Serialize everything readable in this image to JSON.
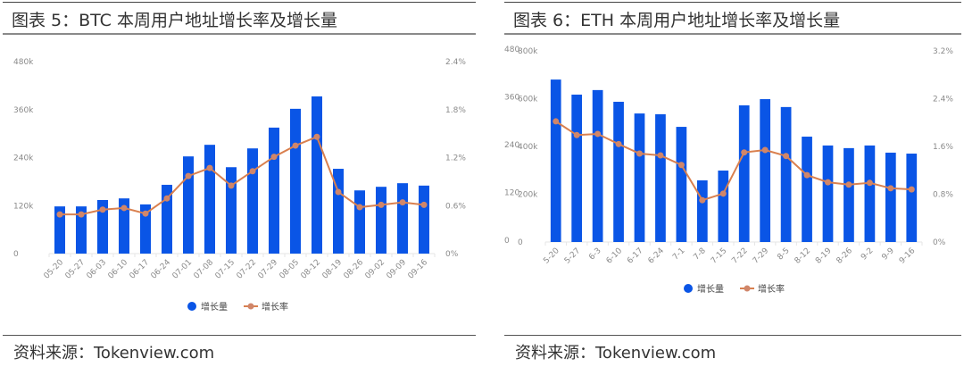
{
  "left_panel": {
    "title": "图表 5：BTC 本周用户地址增长率及增长量",
    "source": "资料来源：Tokenview.com",
    "legend": {
      "bar": "增长量",
      "line": "增长率"
    }
  },
  "right_panel": {
    "title": "图表 6：ETH 本周用户地址增长率及增长量",
    "source": "资料来源：Tokenview.com",
    "legend": {
      "bar": "增长量",
      "line": "增长率"
    }
  },
  "colors": {
    "bar": "#0a55e6",
    "line": "#d9804f",
    "marker": "#d0866a",
    "grid": "#e5e5e5",
    "axis_text": "#8a8a8a"
  },
  "chart_data": [
    {
      "type": "bar+line",
      "title": "图表 5：BTC 本周用户地址增长率及增长量",
      "categories": [
        "05-20",
        "05-27",
        "06-03",
        "06-10",
        "06-17",
        "06-24",
        "07-01",
        "07-08",
        "07-15",
        "07-22",
        "07-29",
        "08-05",
        "08-12",
        "08-19",
        "08-26",
        "09-02",
        "09-09",
        "09-16"
      ],
      "series": [
        {
          "name": "增长量",
          "type": "bar",
          "axis": "left",
          "values": [
            118000,
            118000,
            134000,
            138000,
            123000,
            172000,
            243000,
            272000,
            216000,
            263000,
            315000,
            362000,
            393000,
            212000,
            158000,
            167000,
            176000,
            170000
          ]
        },
        {
          "name": "增长率",
          "type": "line",
          "axis": "right",
          "values": [
            0.49,
            0.49,
            0.55,
            0.57,
            0.5,
            0.69,
            0.97,
            1.07,
            0.85,
            1.03,
            1.21,
            1.35,
            1.46,
            0.77,
            0.58,
            0.61,
            0.64,
            0.61
          ]
        }
      ],
      "left_axis": {
        "ticks": [
          "0",
          "120k",
          "240k",
          "360k",
          "480k"
        ],
        "range": [
          0,
          480000
        ]
      },
      "right_axis": {
        "ticks": [
          "0%",
          "0.6%",
          "1.2%",
          "1.8%",
          "2.4%"
        ],
        "range": [
          0,
          2.4
        ]
      },
      "legend_position": "bottom-center",
      "xlabel": "",
      "ylabel": ""
    },
    {
      "type": "bar+line",
      "title": "图表 6：ETH 本周用户地址增长率及增长量",
      "categories": [
        "5-20",
        "5-27",
        "6-3",
        "6-10",
        "6-17",
        "6-24",
        "7-1",
        "7-8",
        "7-15",
        "7-22",
        "7-29",
        "8-5",
        "8-12",
        "8-19",
        "8-26",
        "9-2",
        "9-9",
        "9-16"
      ],
      "series": [
        {
          "name": "增长量",
          "type": "bar",
          "axis": "left",
          "values": [
            680000,
            617000,
            636000,
            587000,
            538000,
            535000,
            482000,
            258000,
            299000,
            572000,
            598000,
            565000,
            441000,
            404000,
            393000,
            404000,
            374000,
            370000
          ]
        },
        {
          "name": "增长率",
          "type": "line",
          "axis": "right",
          "values": [
            2.02,
            1.79,
            1.81,
            1.64,
            1.48,
            1.45,
            1.29,
            0.7,
            0.81,
            1.5,
            1.54,
            1.44,
            1.12,
            1.0,
            0.96,
            0.99,
            0.9,
            0.88
          ]
        }
      ],
      "left_axis": {
        "ticks": [
          "0",
          "200k",
          "400k",
          "600k",
          "800k"
        ],
        "range": [
          0,
          800000
        ]
      },
      "left_axis_overlay_ticks": [
        "0",
        "120",
        "240",
        "360",
        "480"
      ],
      "right_axis": {
        "ticks": [
          "0%",
          "0.8%",
          "1.6%",
          "2.4%",
          "3.2%"
        ],
        "range": [
          0,
          3.2
        ]
      },
      "legend_position": "bottom-center",
      "xlabel": "",
      "ylabel": ""
    }
  ]
}
